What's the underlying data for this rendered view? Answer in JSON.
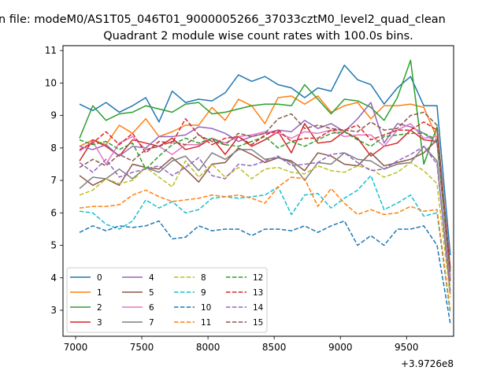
{
  "figure_title": "n file: modeM0/AS1T05_046T01_9000005266_37033cztM0_level2_quad_clean",
  "chart_data": {
    "type": "line",
    "title": "Quadrant 2 module wise count rates with 100.0s bins.",
    "xlabel": "",
    "ylabel": "",
    "x_offset_label": "+3.9726e8",
    "xlim": [
      6905,
      9855
    ],
    "ylim": [
      2.2,
      11.15
    ],
    "xticks": [
      7000,
      7500,
      8000,
      8500,
      9000,
      9500
    ],
    "yticks": [
      3,
      4,
      5,
      6,
      7,
      8,
      9,
      10,
      11
    ],
    "grid": false,
    "legend_position": "lower-left",
    "x": [
      7030,
      7130,
      7230,
      7330,
      7430,
      7530,
      7630,
      7730,
      7830,
      7930,
      8030,
      8130,
      8230,
      8330,
      8430,
      8530,
      8630,
      8730,
      8830,
      8930,
      9030,
      9130,
      9230,
      9330,
      9430,
      9530,
      9630,
      9730,
      9830
    ],
    "series": [
      {
        "name": "0",
        "color": "#1f77b4",
        "dashed": false,
        "values": [
          9.35,
          9.15,
          9.4,
          9.1,
          9.3,
          9.55,
          8.8,
          9.75,
          9.4,
          9.5,
          9.45,
          9.7,
          10.25,
          10.05,
          10.2,
          9.95,
          9.85,
          9.55,
          9.85,
          9.75,
          10.55,
          10.1,
          9.95,
          9.35,
          9.85,
          10.2,
          9.3,
          9.3,
          4.7
        ]
      },
      {
        "name": "1",
        "color": "#ff7f0e",
        "dashed": false,
        "values": [
          8.05,
          8.25,
          8.1,
          8.7,
          8.45,
          8.9,
          8.35,
          8.5,
          8.7,
          8.7,
          9.25,
          8.85,
          9.5,
          9.3,
          8.75,
          9.55,
          9.6,
          9.35,
          9.6,
          9.1,
          9.3,
          9.4,
          8.9,
          9.3,
          9.3,
          9.35,
          9.25,
          8.3,
          4.2
        ]
      },
      {
        "name": "2",
        "color": "#2ca02c",
        "dashed": false,
        "values": [
          8.3,
          9.3,
          8.85,
          9.05,
          9.1,
          9.3,
          9.2,
          9.1,
          9.35,
          9.4,
          9.05,
          9.1,
          9.2,
          9.3,
          9.35,
          9.35,
          9.3,
          9.95,
          9.5,
          9.05,
          9.5,
          9.45,
          9.25,
          8.85,
          9.55,
          10.7,
          7.5,
          8.65,
          4.2
        ]
      },
      {
        "name": "3",
        "color": "#d62728",
        "dashed": false,
        "values": [
          7.6,
          8.25,
          8.05,
          7.75,
          8.25,
          8.15,
          8.05,
          8.3,
          7.95,
          8.05,
          8.3,
          7.8,
          8.35,
          8.05,
          8.25,
          8.5,
          7.85,
          8.75,
          8.15,
          8.2,
          8.5,
          8.3,
          7.75,
          8.05,
          8.15,
          8.55,
          8.25,
          8.2,
          4.3
        ]
      },
      {
        "name": "4",
        "color": "#9467bd",
        "dashed": false,
        "values": [
          8.05,
          7.95,
          8.1,
          7.75,
          8.05,
          8.0,
          8.35,
          8.35,
          8.4,
          8.65,
          8.6,
          8.45,
          8.2,
          8.35,
          8.45,
          8.55,
          8.5,
          8.85,
          8.6,
          8.75,
          8.5,
          8.9,
          9.4,
          8.15,
          8.75,
          8.65,
          8.45,
          8.15,
          4.0
        ]
      },
      {
        "name": "5",
        "color": "#8c564b",
        "dashed": false,
        "values": [
          7.15,
          6.85,
          7.05,
          6.85,
          7.5,
          7.4,
          7.35,
          7.7,
          7.35,
          6.95,
          7.5,
          7.55,
          8.0,
          7.8,
          7.55,
          7.7,
          7.6,
          7.3,
          7.85,
          7.75,
          7.5,
          7.45,
          7.85,
          7.45,
          7.55,
          7.65,
          7.85,
          8.25,
          3.9
        ]
      },
      {
        "name": "6",
        "color": "#e377c2",
        "dashed": false,
        "values": [
          7.9,
          8.2,
          7.5,
          8.15,
          8.35,
          7.95,
          8.05,
          7.8,
          8.1,
          8.1,
          8.3,
          8.15,
          8.35,
          8.4,
          8.5,
          8.45,
          8.3,
          8.5,
          8.45,
          8.55,
          8.35,
          8.4,
          8.4,
          8.05,
          8.55,
          8.75,
          8.3,
          8.35,
          4.0
        ]
      },
      {
        "name": "7",
        "color": "#7f7f7f",
        "dashed": false,
        "values": [
          6.75,
          7.1,
          7.05,
          7.35,
          7.05,
          7.4,
          7.25,
          7.6,
          7.75,
          7.3,
          7.85,
          7.65,
          7.95,
          7.95,
          7.65,
          7.7,
          7.55,
          7.0,
          7.55,
          7.5,
          7.85,
          7.65,
          7.6,
          7.35,
          7.5,
          7.55,
          8.05,
          7.6,
          3.5
        ]
      },
      {
        "name": "8",
        "color": "#bcbd22",
        "dashed": true,
        "values": [
          6.55,
          6.7,
          7.05,
          6.9,
          7.0,
          7.4,
          7.1,
          6.8,
          7.6,
          7.1,
          7.5,
          7.1,
          7.4,
          7.05,
          7.35,
          7.4,
          7.25,
          7.2,
          7.45,
          7.3,
          7.25,
          7.45,
          7.35,
          7.1,
          7.25,
          7.55,
          7.3,
          6.9,
          3.4
        ]
      },
      {
        "name": "9",
        "color": "#17becf",
        "dashed": true,
        "values": [
          6.05,
          6.0,
          5.65,
          5.5,
          5.75,
          6.4,
          6.15,
          6.35,
          6.0,
          6.1,
          6.45,
          6.5,
          6.45,
          6.5,
          6.55,
          6.8,
          5.95,
          6.55,
          6.6,
          6.15,
          6.45,
          6.7,
          7.15,
          6.1,
          6.3,
          6.55,
          5.9,
          6.0,
          2.9
        ]
      },
      {
        "name": "10",
        "color": "#1f77b4",
        "dashed": true,
        "values": [
          5.4,
          5.6,
          5.45,
          5.6,
          5.55,
          5.6,
          5.75,
          5.2,
          5.25,
          5.6,
          5.45,
          5.5,
          5.5,
          5.3,
          5.5,
          5.5,
          5.45,
          5.6,
          5.4,
          5.6,
          5.75,
          5.0,
          5.3,
          5.0,
          5.5,
          5.5,
          5.6,
          5.0,
          2.6
        ]
      },
      {
        "name": "11",
        "color": "#ff7f0e",
        "dashed": true,
        "values": [
          6.15,
          6.2,
          6.2,
          6.25,
          6.55,
          6.7,
          6.5,
          6.35,
          6.4,
          6.45,
          6.55,
          6.5,
          6.55,
          6.45,
          6.3,
          6.8,
          7.1,
          7.05,
          6.2,
          6.75,
          6.3,
          5.95,
          6.1,
          5.95,
          6.0,
          6.2,
          6.05,
          6.1,
          3.0
        ]
      },
      {
        "name": "12",
        "color": "#2ca02c",
        "dashed": true,
        "values": [
          8.25,
          8.1,
          8.2,
          7.95,
          8.15,
          7.35,
          7.75,
          8.1,
          8.3,
          8.15,
          8.3,
          8.1,
          8.05,
          8.2,
          8.35,
          8.0,
          8.2,
          8.05,
          8.25,
          8.45,
          8.5,
          8.25,
          8.05,
          8.35,
          8.4,
          8.45,
          8.45,
          8.25,
          4.1
        ]
      },
      {
        "name": "13",
        "color": "#d62728",
        "dashed": true,
        "values": [
          7.95,
          8.15,
          8.5,
          8.1,
          8.45,
          7.85,
          8.2,
          8.15,
          8.9,
          8.4,
          8.1,
          8.3,
          8.35,
          8.1,
          8.4,
          8.55,
          8.2,
          8.3,
          8.3,
          8.55,
          8.55,
          8.7,
          8.25,
          8.4,
          8.55,
          8.55,
          8.8,
          8.55,
          4.3
        ]
      },
      {
        "name": "14",
        "color": "#9467bd",
        "dashed": true,
        "values": [
          7.55,
          7.25,
          7.65,
          7.1,
          7.25,
          7.35,
          7.45,
          7.15,
          7.4,
          7.7,
          7.15,
          7.05,
          7.5,
          7.45,
          7.6,
          7.75,
          7.45,
          7.5,
          7.55,
          7.8,
          7.85,
          7.55,
          7.3,
          7.35,
          7.6,
          7.8,
          8.05,
          7.5,
          3.6
        ]
      },
      {
        "name": "15",
        "color": "#8c564b",
        "dashed": true,
        "values": [
          7.4,
          7.65,
          7.45,
          7.8,
          7.6,
          7.95,
          8.05,
          8.2,
          8.1,
          8.4,
          8.2,
          8.1,
          8.45,
          8.35,
          8.45,
          8.9,
          9.05,
          8.6,
          8.7,
          8.6,
          8.55,
          8.5,
          8.8,
          8.55,
          8.6,
          9.0,
          9.1,
          8.7,
          4.2
        ]
      }
    ]
  }
}
